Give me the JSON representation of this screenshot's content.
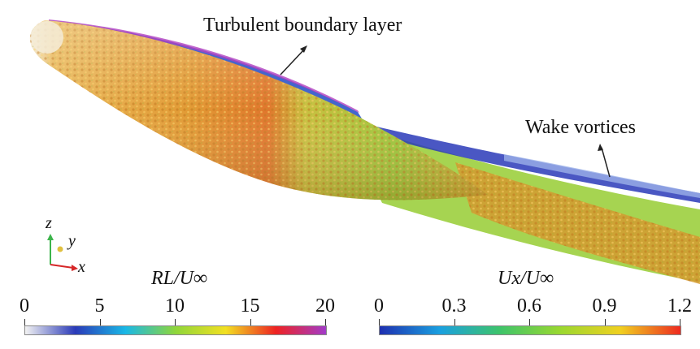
{
  "annotations": {
    "boundary_layer": "Turbulent boundary layer",
    "wake": "Wake vortices"
  },
  "axes_triad": {
    "z": "z",
    "y": "y",
    "x": "x"
  },
  "colorbar_left": {
    "title": "RL/U∞",
    "ticks": [
      "0",
      "5",
      "10",
      "15",
      "20"
    ],
    "colors": [
      "#f2f2f2",
      "#2a3ab8",
      "#19b8e6",
      "#8fd63a",
      "#f2e022",
      "#ee2222",
      "#a23bc9"
    ]
  },
  "colorbar_right": {
    "title": "Ux/U∞",
    "ticks": [
      "0",
      "0.3",
      "0.6",
      "0.9",
      "1.2"
    ],
    "colors": [
      "#1e2fb0",
      "#1aa0e0",
      "#3ec46a",
      "#9ad830",
      "#f0d020",
      "#ee2a20"
    ]
  },
  "palette": {
    "body_base": "#e0962e",
    "body_highlight": "#f2b64a",
    "wake_green": "#8cc83c",
    "vortex_blue": "#2a3ab8"
  }
}
